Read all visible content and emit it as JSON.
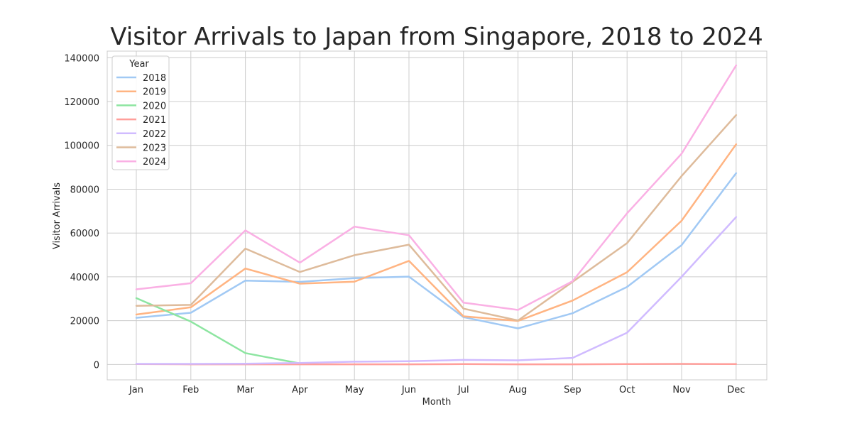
{
  "chart_data": {
    "type": "line",
    "title": "Visitor Arrivals to Japan from Singapore, 2018 to 2024",
    "xlabel": "Month",
    "ylabel": "Visitor Arrivals",
    "categories": [
      "Jan",
      "Feb",
      "Mar",
      "Apr",
      "May",
      "Jun",
      "Jul",
      "Aug",
      "Sep",
      "Oct",
      "Nov",
      "Dec"
    ],
    "ylim": [
      -7000,
      143000
    ],
    "yticks": [
      0,
      20000,
      40000,
      60000,
      80000,
      100000,
      120000,
      140000
    ],
    "grid": true,
    "legend": {
      "title": "Year",
      "placement": "top-left"
    },
    "series": [
      {
        "name": "2018",
        "color": "#a1c9f4",
        "values": [
          21300,
          23600,
          38300,
          37700,
          39400,
          40100,
          21600,
          16500,
          23400,
          35400,
          54500,
          87300
        ]
      },
      {
        "name": "2019",
        "color": "#ffb482",
        "values": [
          22800,
          26100,
          43800,
          36900,
          37800,
          47300,
          22000,
          19900,
          29200,
          42100,
          65600,
          100500
        ]
      },
      {
        "name": "2020",
        "color": "#8de5a1",
        "values": [
          30300,
          19600,
          5200,
          500,
          null,
          null,
          null,
          null,
          null,
          null,
          null,
          null
        ]
      },
      {
        "name": "2021",
        "color": "#ff9f9b",
        "values": [
          200,
          100,
          100,
          100,
          100,
          100,
          200,
          100,
          100,
          200,
          300,
          200
        ]
      },
      {
        "name": "2022",
        "color": "#d0bbff",
        "values": [
          300,
          300,
          400,
          700,
          1300,
          1500,
          2100,
          1900,
          3000,
          14500,
          40000,
          67300
        ]
      },
      {
        "name": "2023",
        "color": "#debb9b",
        "values": [
          26800,
          27200,
          52900,
          42200,
          49900,
          54700,
          25500,
          20100,
          37700,
          55400,
          86000,
          113800
        ]
      },
      {
        "name": "2024",
        "color": "#fab0e4",
        "values": [
          34300,
          37100,
          61200,
          46500,
          62900,
          59000,
          28200,
          24900,
          38000,
          69000,
          96200,
          136500
        ]
      }
    ]
  }
}
